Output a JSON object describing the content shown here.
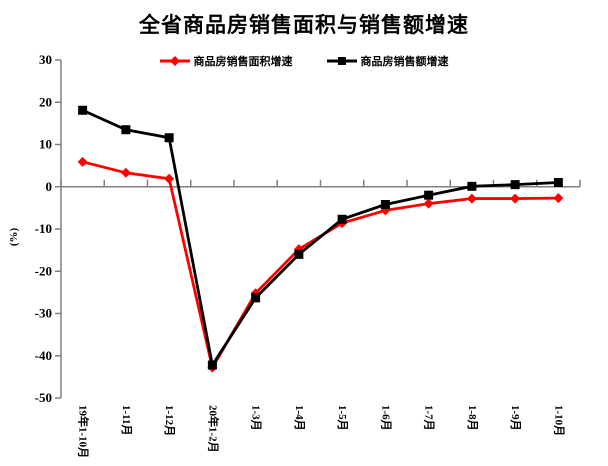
{
  "title": "全省商品房销售面积与销售额增速",
  "colors": {
    "background": "#FFFFFF",
    "axis": "#808080",
    "text": "#000000",
    "series_area": "#FF0000",
    "series_amount": "#000000"
  },
  "chart_data": {
    "type": "line",
    "title": "全省商品房销售面积与销售额增速",
    "categories": [
      "19年1-10月",
      "1-11月",
      "1-12月",
      "20年1-2月",
      "1-3月",
      "1-4月",
      "1-5月",
      "1-6月",
      "1-7月",
      "1-8月",
      "1-9月",
      "1-10月"
    ],
    "series": [
      {
        "name": "商品房销售面积增速",
        "color": "#FF0000",
        "marker": "diamond",
        "values": [
          5.9,
          3.3,
          1.9,
          -42.8,
          -25.2,
          -14.8,
          -8.6,
          -5.6,
          -4.0,
          -2.8,
          -2.8,
          -2.7
        ]
      },
      {
        "name": "商品房销售额增速",
        "color": "#000000",
        "marker": "square",
        "values": [
          18.1,
          13.5,
          11.6,
          -42.2,
          -26.3,
          -16.0,
          -7.7,
          -4.2,
          -2.0,
          0.1,
          0.5,
          1.0
        ]
      }
    ],
    "xlabel": "",
    "ylabel": "(%)",
    "ylim": [
      -50,
      30
    ],
    "ytick_step": 10,
    "grid": false,
    "legend_position": "top"
  }
}
